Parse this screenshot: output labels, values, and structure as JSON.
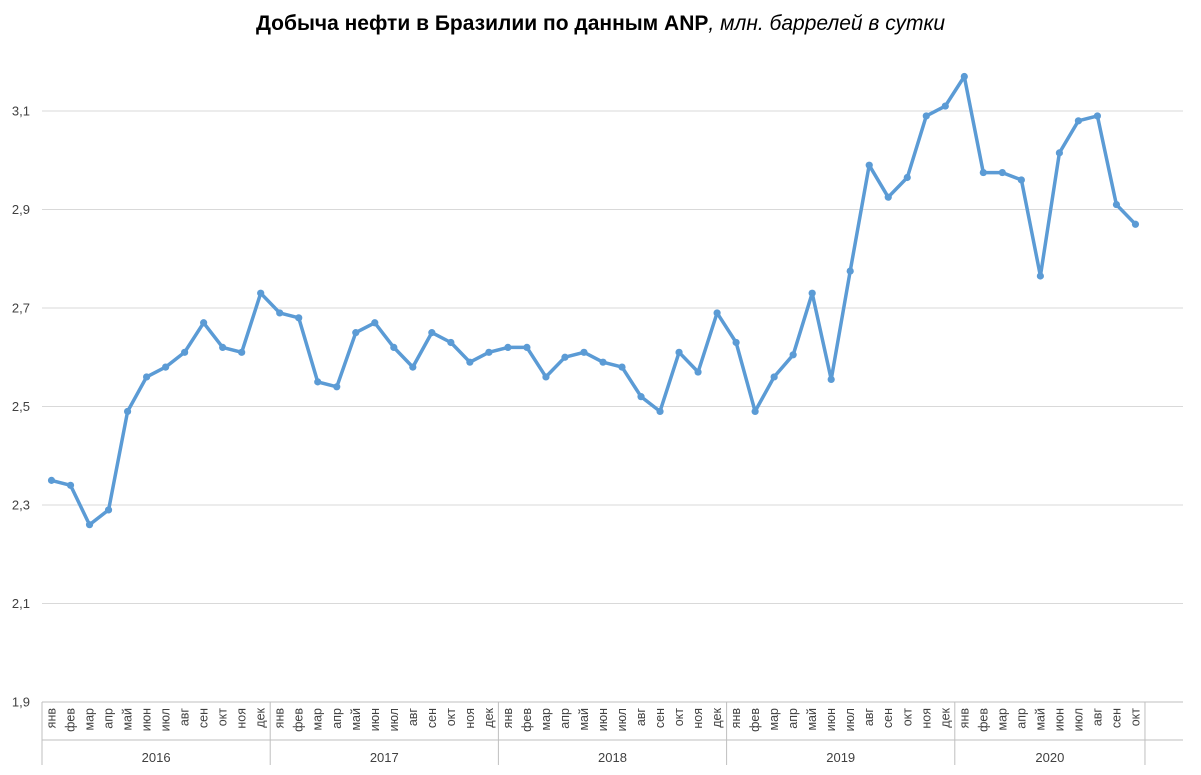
{
  "title": {
    "main": "Добыча нефти в Бразилии по данным ANP",
    "sub": ", млн. баррелей в сутки"
  },
  "colors": {
    "line": "#5B9BD5",
    "grid": "#D9D9D9",
    "axis": "#BFBFBF",
    "text": "#404040"
  },
  "chart_data": {
    "type": "line",
    "title": "Добыча нефти в Бразилии по данным ANP, млн. баррелей в сутки",
    "xlabel": "",
    "ylabel": "",
    "ylim": [
      1.9,
      3.3
    ],
    "yticks": [
      1.9,
      2.1,
      2.3,
      2.5,
      2.7,
      2.9,
      3.1
    ],
    "ytick_labels": [
      "1,9",
      "2,1",
      "2,3",
      "2,5",
      "2,7",
      "2,9",
      "3,1"
    ],
    "grid": true,
    "legend": "none",
    "years": [
      {
        "label": "2016",
        "count": 12
      },
      {
        "label": "2017",
        "count": 12
      },
      {
        "label": "2018",
        "count": 12
      },
      {
        "label": "2019",
        "count": 12
      },
      {
        "label": "2020",
        "count": 10
      }
    ],
    "categories": [
      "янв",
      "фев",
      "мар",
      "апр",
      "май",
      "июн",
      "июл",
      "авг",
      "сен",
      "окт",
      "ноя",
      "дек",
      "янв",
      "фев",
      "мар",
      "апр",
      "май",
      "июн",
      "июл",
      "авг",
      "сен",
      "окт",
      "ноя",
      "дек",
      "янв",
      "фев",
      "мар",
      "апр",
      "май",
      "июн",
      "июл",
      "авг",
      "сен",
      "окт",
      "ноя",
      "дек",
      "янв",
      "фев",
      "мар",
      "апр",
      "май",
      "июн",
      "июл",
      "авг",
      "сен",
      "окт",
      "ноя",
      "дек",
      "янв",
      "фев",
      "мар",
      "апр",
      "май",
      "июн",
      "июл",
      "авг",
      "сен",
      "окт"
    ],
    "values": [
      2.35,
      2.34,
      2.26,
      2.29,
      2.49,
      2.56,
      2.58,
      2.61,
      2.67,
      2.62,
      2.61,
      2.73,
      2.69,
      2.68,
      2.55,
      2.54,
      2.65,
      2.67,
      2.62,
      2.58,
      2.65,
      2.63,
      2.59,
      2.61,
      2.62,
      2.62,
      2.56,
      2.6,
      2.61,
      2.59,
      2.58,
      2.52,
      2.49,
      2.61,
      2.57,
      2.69,
      2.63,
      2.49,
      2.56,
      2.605,
      2.73,
      2.555,
      2.775,
      2.99,
      2.925,
      2.965,
      3.09,
      3.11,
      3.17,
      2.975,
      2.975,
      2.96,
      2.765,
      3.015,
      3.08,
      3.09,
      2.91,
      2.87
    ]
  }
}
